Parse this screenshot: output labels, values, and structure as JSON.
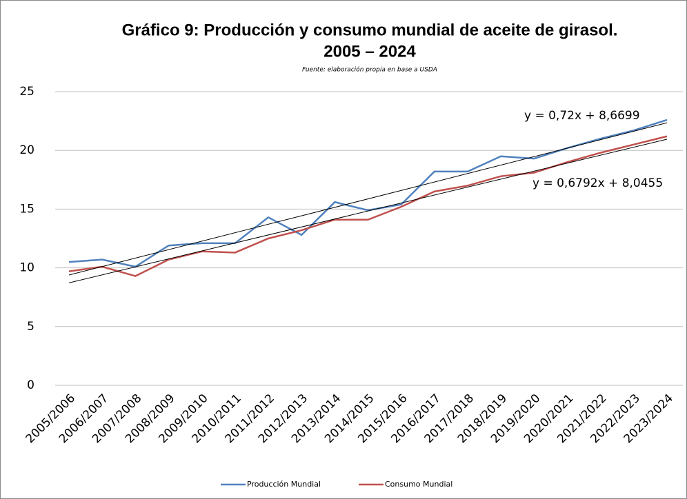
{
  "chart_data": {
    "type": "line",
    "title": [
      "Gráfico 9: Producción y consumo mundial de aceite de girasol.",
      "2005 – 2024"
    ],
    "subtitle": "Fuente: elaboración propia en base a USDA",
    "categories": [
      "2005/2006",
      "2006/2007",
      "2007/2008",
      "2008/2009",
      "2009/2010",
      "2010/2011",
      "2011/2012",
      "2012/2013",
      "2013/2014",
      "2014/2015",
      "2015/2016",
      "2016/2017",
      "2017/2018",
      "2018/2019",
      "2019/2020",
      "2020/2021",
      "2021/2022",
      "2022/2023",
      "2023/2024"
    ],
    "series": [
      {
        "name": "Producción Mundial",
        "color": "#4f81bd",
        "values": [
          10.5,
          10.7,
          10.1,
          11.9,
          12.1,
          12.1,
          14.3,
          12.8,
          15.6,
          14.9,
          15.4,
          18.2,
          18.2,
          19.5,
          19.3,
          20.2,
          21.0,
          21.7,
          22.6
        ]
      },
      {
        "name": "Consumo Mundial",
        "color": "#c0504d",
        "values": [
          9.7,
          10.1,
          9.3,
          10.7,
          11.4,
          11.3,
          12.5,
          13.2,
          14.1,
          14.1,
          15.2,
          16.5,
          17.0,
          17.8,
          18.1,
          19.0,
          19.8,
          20.5,
          21.2
        ]
      }
    ],
    "trendlines": [
      {
        "label": "y = 0,72x + 8,6699",
        "slope": 0.72,
        "intercept": 8.6699,
        "color": "#000000"
      },
      {
        "label": "y = 0,6792x + 8,0455",
        "slope": 0.6792,
        "intercept": 8.0455,
        "color": "#000000"
      }
    ],
    "ylim": [
      0,
      25
    ],
    "yticks": [
      0,
      5,
      10,
      15,
      20,
      25
    ],
    "grid": true,
    "legend": "bottom"
  }
}
